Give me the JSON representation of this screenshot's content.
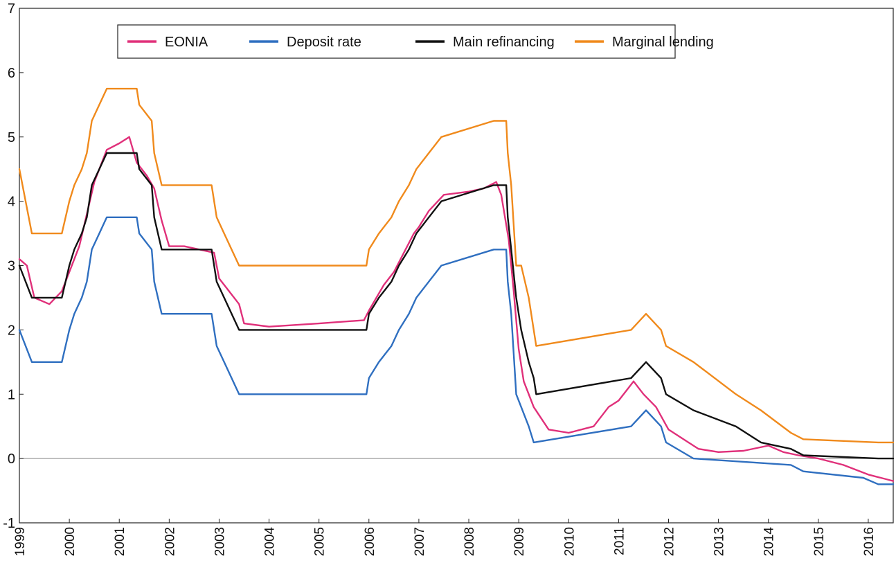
{
  "chart_data": {
    "type": "line",
    "title": "",
    "xlabel": "",
    "ylabel": "",
    "xlim": [
      1999,
      2016.5
    ],
    "ylim": [
      -1,
      7
    ],
    "grid": false,
    "legend_position": "top",
    "x_ticks": [
      "1999",
      "2000",
      "2001",
      "2002",
      "2003",
      "2004",
      "2005",
      "2006",
      "2007",
      "2008",
      "2009",
      "2010",
      "2011",
      "2012",
      "2013",
      "2014",
      "2015",
      "2016"
    ],
    "y_ticks": [
      "-1",
      "0",
      "1",
      "2",
      "3",
      "4",
      "5",
      "6",
      "7"
    ],
    "series": [
      {
        "name": "EONIA",
        "color": "#e0307a",
        "values": [
          [
            1999.0,
            3.1
          ],
          [
            1999.15,
            3.0
          ],
          [
            1999.3,
            2.5
          ],
          [
            1999.6,
            2.4
          ],
          [
            1999.85,
            2.6
          ],
          [
            2000.0,
            2.9
          ],
          [
            2000.2,
            3.3
          ],
          [
            2000.35,
            3.8
          ],
          [
            2000.5,
            4.3
          ],
          [
            2000.75,
            4.8
          ],
          [
            2001.0,
            4.9
          ],
          [
            2001.2,
            5.0
          ],
          [
            2001.35,
            4.6
          ],
          [
            2001.55,
            4.4
          ],
          [
            2001.7,
            4.2
          ],
          [
            2001.85,
            3.7
          ],
          [
            2002.0,
            3.3
          ],
          [
            2002.3,
            3.3
          ],
          [
            2002.9,
            3.2
          ],
          [
            2003.0,
            2.8
          ],
          [
            2003.2,
            2.6
          ],
          [
            2003.4,
            2.4
          ],
          [
            2003.5,
            2.1
          ],
          [
            2004.0,
            2.05
          ],
          [
            2005.0,
            2.1
          ],
          [
            2005.9,
            2.15
          ],
          [
            2006.0,
            2.3
          ],
          [
            2006.15,
            2.5
          ],
          [
            2006.3,
            2.7
          ],
          [
            2006.5,
            2.9
          ],
          [
            2006.7,
            3.2
          ],
          [
            2006.9,
            3.5
          ],
          [
            2007.0,
            3.6
          ],
          [
            2007.2,
            3.85
          ],
          [
            2007.5,
            4.1
          ],
          [
            2008.0,
            4.15
          ],
          [
            2008.3,
            4.2
          ],
          [
            2008.55,
            4.3
          ],
          [
            2008.65,
            4.1
          ],
          [
            2008.8,
            3.4
          ],
          [
            2008.9,
            2.6
          ],
          [
            2009.0,
            1.7
          ],
          [
            2009.1,
            1.2
          ],
          [
            2009.3,
            0.8
          ],
          [
            2009.6,
            0.45
          ],
          [
            2010.0,
            0.4
          ],
          [
            2010.5,
            0.5
          ],
          [
            2010.8,
            0.8
          ],
          [
            2011.0,
            0.9
          ],
          [
            2011.2,
            1.1
          ],
          [
            2011.3,
            1.2
          ],
          [
            2011.5,
            1.0
          ],
          [
            2011.75,
            0.8
          ],
          [
            2012.0,
            0.45
          ],
          [
            2012.3,
            0.3
          ],
          [
            2012.6,
            0.15
          ],
          [
            2013.0,
            0.1
          ],
          [
            2013.5,
            0.12
          ],
          [
            2014.0,
            0.2
          ],
          [
            2014.3,
            0.1
          ],
          [
            2014.6,
            0.05
          ],
          [
            2015.0,
            0.0
          ],
          [
            2015.5,
            -0.1
          ],
          [
            2016.0,
            -0.25
          ],
          [
            2016.5,
            -0.35
          ]
        ]
      },
      {
        "name": "Deposit rate",
        "color": "#2f6fc0",
        "values": [
          [
            1999.0,
            2.0
          ],
          [
            1999.25,
            1.5
          ],
          [
            1999.3,
            1.5
          ],
          [
            1999.85,
            1.5
          ],
          [
            2000.0,
            2.0
          ],
          [
            2000.1,
            2.25
          ],
          [
            2000.25,
            2.5
          ],
          [
            2000.35,
            2.75
          ],
          [
            2000.45,
            3.25
          ],
          [
            2000.6,
            3.5
          ],
          [
            2000.75,
            3.75
          ],
          [
            2001.35,
            3.75
          ],
          [
            2001.4,
            3.5
          ],
          [
            2001.65,
            3.25
          ],
          [
            2001.7,
            2.75
          ],
          [
            2001.85,
            2.25
          ],
          [
            2002.85,
            2.25
          ],
          [
            2002.95,
            1.75
          ],
          [
            2003.1,
            1.5
          ],
          [
            2003.4,
            1.0
          ],
          [
            2005.95,
            1.0
          ],
          [
            2006.0,
            1.25
          ],
          [
            2006.2,
            1.5
          ],
          [
            2006.45,
            1.75
          ],
          [
            2006.6,
            2.0
          ],
          [
            2006.8,
            2.25
          ],
          [
            2006.95,
            2.5
          ],
          [
            2007.2,
            2.75
          ],
          [
            2007.45,
            3.0
          ],
          [
            2008.5,
            3.25
          ],
          [
            2008.75,
            3.25
          ],
          [
            2008.78,
            2.75
          ],
          [
            2008.85,
            2.25
          ],
          [
            2008.95,
            1.0
          ],
          [
            2009.2,
            0.5
          ],
          [
            2009.3,
            0.25
          ],
          [
            2011.25,
            0.5
          ],
          [
            2011.55,
            0.75
          ],
          [
            2011.85,
            0.5
          ],
          [
            2011.95,
            0.25
          ],
          [
            2012.5,
            0.0
          ],
          [
            2014.45,
            -0.1
          ],
          [
            2014.7,
            -0.2
          ],
          [
            2015.9,
            -0.3
          ],
          [
            2016.2,
            -0.4
          ],
          [
            2016.5,
            -0.4
          ]
        ]
      },
      {
        "name": "Main refinancing",
        "color": "#111111",
        "values": [
          [
            1999.0,
            3.0
          ],
          [
            1999.25,
            2.5
          ],
          [
            1999.85,
            2.5
          ],
          [
            2000.0,
            3.0
          ],
          [
            2000.1,
            3.25
          ],
          [
            2000.25,
            3.5
          ],
          [
            2000.35,
            3.75
          ],
          [
            2000.45,
            4.25
          ],
          [
            2000.6,
            4.5
          ],
          [
            2000.75,
            4.75
          ],
          [
            2001.35,
            4.75
          ],
          [
            2001.4,
            4.5
          ],
          [
            2001.65,
            4.25
          ],
          [
            2001.7,
            3.75
          ],
          [
            2001.85,
            3.25
          ],
          [
            2002.85,
            3.25
          ],
          [
            2002.95,
            2.75
          ],
          [
            2003.1,
            2.5
          ],
          [
            2003.4,
            2.0
          ],
          [
            2005.95,
            2.0
          ],
          [
            2006.0,
            2.25
          ],
          [
            2006.2,
            2.5
          ],
          [
            2006.45,
            2.75
          ],
          [
            2006.6,
            3.0
          ],
          [
            2006.8,
            3.25
          ],
          [
            2006.95,
            3.5
          ],
          [
            2007.2,
            3.75
          ],
          [
            2007.45,
            4.0
          ],
          [
            2008.5,
            4.25
          ],
          [
            2008.75,
            4.25
          ],
          [
            2008.78,
            3.75
          ],
          [
            2008.85,
            3.25
          ],
          [
            2008.95,
            2.5
          ],
          [
            2009.05,
            2.0
          ],
          [
            2009.2,
            1.5
          ],
          [
            2009.3,
            1.25
          ],
          [
            2009.35,
            1.0
          ],
          [
            2011.25,
            1.25
          ],
          [
            2011.55,
            1.5
          ],
          [
            2011.85,
            1.25
          ],
          [
            2011.95,
            1.0
          ],
          [
            2012.5,
            0.75
          ],
          [
            2013.35,
            0.5
          ],
          [
            2013.85,
            0.25
          ],
          [
            2014.45,
            0.15
          ],
          [
            2014.7,
            0.05
          ],
          [
            2016.2,
            0.0
          ],
          [
            2016.5,
            0.0
          ]
        ]
      },
      {
        "name": "Marginal lending",
        "color": "#f08a1c",
        "values": [
          [
            1999.0,
            4.5
          ],
          [
            1999.25,
            3.5
          ],
          [
            1999.85,
            3.5
          ],
          [
            2000.0,
            4.0
          ],
          [
            2000.1,
            4.25
          ],
          [
            2000.25,
            4.5
          ],
          [
            2000.35,
            4.75
          ],
          [
            2000.45,
            5.25
          ],
          [
            2000.6,
            5.5
          ],
          [
            2000.75,
            5.75
          ],
          [
            2001.35,
            5.75
          ],
          [
            2001.4,
            5.5
          ],
          [
            2001.65,
            5.25
          ],
          [
            2001.7,
            4.75
          ],
          [
            2001.85,
            4.25
          ],
          [
            2002.85,
            4.25
          ],
          [
            2002.95,
            3.75
          ],
          [
            2003.1,
            3.5
          ],
          [
            2003.4,
            3.0
          ],
          [
            2005.95,
            3.0
          ],
          [
            2006.0,
            3.25
          ],
          [
            2006.2,
            3.5
          ],
          [
            2006.45,
            3.75
          ],
          [
            2006.6,
            4.0
          ],
          [
            2006.8,
            4.25
          ],
          [
            2006.95,
            4.5
          ],
          [
            2007.2,
            4.75
          ],
          [
            2007.45,
            5.0
          ],
          [
            2008.5,
            5.25
          ],
          [
            2008.75,
            5.25
          ],
          [
            2008.78,
            4.75
          ],
          [
            2008.85,
            4.25
          ],
          [
            2008.95,
            3.0
          ],
          [
            2009.05,
            3.0
          ],
          [
            2009.2,
            2.5
          ],
          [
            2009.3,
            2.0
          ],
          [
            2009.35,
            1.75
          ],
          [
            2011.25,
            2.0
          ],
          [
            2011.55,
            2.25
          ],
          [
            2011.85,
            2.0
          ],
          [
            2011.95,
            1.75
          ],
          [
            2012.5,
            1.5
          ],
          [
            2013.35,
            1.0
          ],
          [
            2013.85,
            0.75
          ],
          [
            2014.45,
            0.4
          ],
          [
            2014.7,
            0.3
          ],
          [
            2016.2,
            0.25
          ],
          [
            2016.5,
            0.25
          ]
        ]
      }
    ]
  }
}
